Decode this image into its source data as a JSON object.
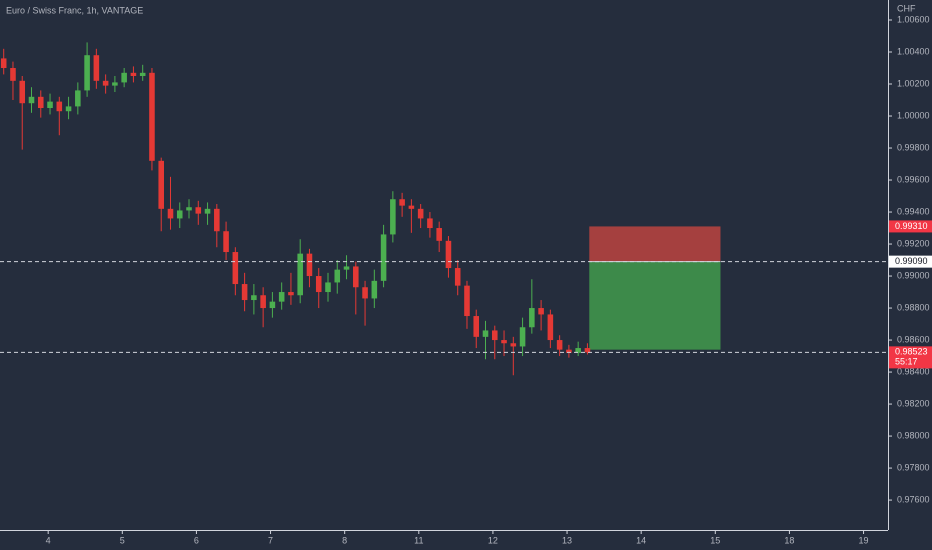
{
  "chart_data": {
    "type": "candlestick",
    "title": "Euro / Swiss Franc, 1h, VANTAGE",
    "currency_label": "CHF",
    "up_color": "#4caf50",
    "down_color": "#e53935",
    "x": [
      -0.6,
      -0.475,
      -0.35,
      -0.225,
      -0.1,
      0.025,
      0.15,
      0.275,
      0.4,
      0.525,
      0.65,
      0.775,
      0.9,
      1.025,
      1.15,
      1.275,
      1.4,
      1.525,
      1.65,
      1.775,
      1.9,
      2.025,
      2.15,
      2.275,
      2.4,
      2.525,
      2.65,
      2.775,
      2.9,
      3.025,
      3.15,
      3.275,
      3.4,
      3.525,
      3.65,
      3.775,
      3.9,
      4.025,
      4.15,
      4.275,
      4.4,
      4.525,
      4.65,
      4.775,
      4.9,
      5.025,
      5.15,
      5.275,
      5.4,
      5.525,
      5.65,
      5.775,
      5.9,
      6.025,
      6.15,
      6.275,
      6.4,
      6.525,
      6.65,
      6.775,
      6.9,
      7.025,
      7.15,
      7.275
    ],
    "open": [
      1.0036,
      1.003,
      1.0022,
      1.0008,
      1.0012,
      1.0005,
      1.0009,
      1.0003,
      1.0006,
      1.0016,
      1.0038,
      1.0022,
      1.0019,
      1.0021,
      1.0027,
      1.0025,
      1.0027,
      0.9972,
      0.9942,
      0.9936,
      0.9941,
      0.9943,
      0.9939,
      0.9942,
      0.9928,
      0.9915,
      0.9895,
      0.9885,
      0.9888,
      0.988,
      0.9884,
      0.989,
      0.9888,
      0.9914,
      0.99,
      0.989,
      0.9896,
      0.9904,
      0.9906,
      0.9893,
      0.9886,
      0.9897,
      0.9926,
      0.9948,
      0.9944,
      0.9942,
      0.9936,
      0.993,
      0.9922,
      0.9905,
      0.9894,
      0.9875,
      0.9862,
      0.9866,
      0.986,
      0.9858,
      0.9856,
      0.9868,
      0.988,
      0.9876,
      0.986,
      0.9854,
      0.9852,
      0.9855
    ],
    "high": [
      1.0042,
      1.0034,
      1.0025,
      1.0018,
      1.0016,
      1.0014,
      1.0012,
      1.0012,
      1.0021,
      1.0046,
      1.0042,
      1.0026,
      1.0025,
      1.003,
      1.0031,
      1.0032,
      1.003,
      0.9974,
      0.9962,
      0.9946,
      0.9948,
      0.9947,
      0.9946,
      0.9945,
      0.9934,
      0.9918,
      0.9902,
      0.9895,
      0.9893,
      0.989,
      0.9896,
      0.9902,
      0.9923,
      0.9917,
      0.9905,
      0.9902,
      0.991,
      0.9913,
      0.9909,
      0.9897,
      0.9904,
      0.9932,
      0.9953,
      0.9952,
      0.9948,
      0.9945,
      0.994,
      0.9934,
      0.9925,
      0.991,
      0.9897,
      0.9879,
      0.9872,
      0.9869,
      0.9866,
      0.9862,
      0.9874,
      0.9898,
      0.9885,
      0.9879,
      0.9863,
      0.9857,
      0.9859,
      0.9858
    ],
    "low": [
      1.0026,
      1.001,
      0.9979,
      1.0002,
      0.9999,
      1.0001,
      0.9988,
      0.9998,
      1.0001,
      1.0012,
      1.0017,
      1.0014,
      1.0015,
      1.0018,
      1.0021,
      1.0022,
      0.9966,
      0.9928,
      0.9929,
      0.993,
      0.9936,
      0.9932,
      0.9932,
      0.9918,
      0.991,
      0.9888,
      0.9878,
      0.9876,
      0.9868,
      0.9874,
      0.9879,
      0.9882,
      0.9883,
      0.9893,
      0.988,
      0.9884,
      0.9889,
      0.9898,
      0.9876,
      0.9869,
      0.988,
      0.9893,
      0.9921,
      0.9937,
      0.9927,
      0.993,
      0.9924,
      0.9915,
      0.9899,
      0.9888,
      0.9867,
      0.9855,
      0.9848,
      0.9848,
      0.985,
      0.9838,
      0.985,
      0.9864,
      0.9866,
      0.9855,
      0.985,
      0.9849,
      0.985,
      0.9851
    ],
    "close": [
      1.003,
      1.0022,
      1.0008,
      1.0012,
      1.0005,
      1.0009,
      1.0003,
      1.0006,
      1.0016,
      1.0038,
      1.0022,
      1.0019,
      1.0021,
      1.0027,
      1.0025,
      1.0027,
      0.9972,
      0.9942,
      0.9936,
      0.9941,
      0.9943,
      0.9939,
      0.9942,
      0.9928,
      0.9915,
      0.9895,
      0.9885,
      0.9888,
      0.988,
      0.9884,
      0.989,
      0.9888,
      0.9914,
      0.99,
      0.989,
      0.9896,
      0.9904,
      0.9906,
      0.9893,
      0.9886,
      0.9897,
      0.9926,
      0.9948,
      0.9944,
      0.9942,
      0.9936,
      0.993,
      0.9922,
      0.9905,
      0.9894,
      0.9875,
      0.9862,
      0.9866,
      0.986,
      0.9858,
      0.9856,
      0.9868,
      0.988,
      0.9876,
      0.986,
      0.9854,
      0.9852,
      0.9855,
      0.98523
    ],
    "xlim": [
      -0.65,
      11.33
    ],
    "ylim": [
      0.97413,
      1.00725
    ],
    "xticks": [
      {
        "value": 0,
        "label": "4"
      },
      {
        "value": 1,
        "label": "5"
      },
      {
        "value": 2,
        "label": "6"
      },
      {
        "value": 3,
        "label": "7"
      },
      {
        "value": 4,
        "label": "8"
      },
      {
        "value": 5,
        "label": "11"
      },
      {
        "value": 6,
        "label": "12"
      },
      {
        "value": 7,
        "label": "13"
      },
      {
        "value": 8,
        "label": "14"
      },
      {
        "value": 9,
        "label": "15"
      },
      {
        "value": 10,
        "label": "18"
      },
      {
        "value": 11,
        "label": "19"
      }
    ],
    "yticks": [
      {
        "value": 1.006,
        "label": "1.00600"
      },
      {
        "value": 1.004,
        "label": "1.00400"
      },
      {
        "value": 1.002,
        "label": "1.00200"
      },
      {
        "value": 1.0,
        "label": "1.00000"
      },
      {
        "value": 0.998,
        "label": "0.99800"
      },
      {
        "value": 0.996,
        "label": "0.99600"
      },
      {
        "value": 0.994,
        "label": "0.99400"
      },
      {
        "value": 0.992,
        "label": "0.99200"
      },
      {
        "value": 0.99,
        "label": "0.99000"
      },
      {
        "value": 0.988,
        "label": "0.98800"
      },
      {
        "value": 0.986,
        "label": "0.98600"
      },
      {
        "value": 0.984,
        "label": "0.98400"
      },
      {
        "value": 0.982,
        "label": "0.98200"
      },
      {
        "value": 0.98,
        "label": "0.98000"
      },
      {
        "value": 0.978,
        "label": "0.97800"
      },
      {
        "value": 0.976,
        "label": "0.97600"
      }
    ],
    "position": {
      "start_x": 7.3,
      "end_x": 9.07,
      "entry": 0.9909,
      "stop": 0.9931,
      "target": 0.9854,
      "stop_color": "#a5403f",
      "target_color": "#3d8a4a"
    },
    "price_labels": [
      {
        "value": 0.9931,
        "label": "0.99310",
        "color": "#f23645",
        "text_color": "#ffffff",
        "dashed": false
      },
      {
        "value": 0.9909,
        "label": "0.99090",
        "color": "#ffffff",
        "text_color": "#131722",
        "dashed": true
      },
      {
        "value": 0.98523,
        "label": "0.98523",
        "sublabel": "55:17",
        "color": "#f23645",
        "text_color": "#ffffff",
        "dashed": true
      }
    ]
  }
}
